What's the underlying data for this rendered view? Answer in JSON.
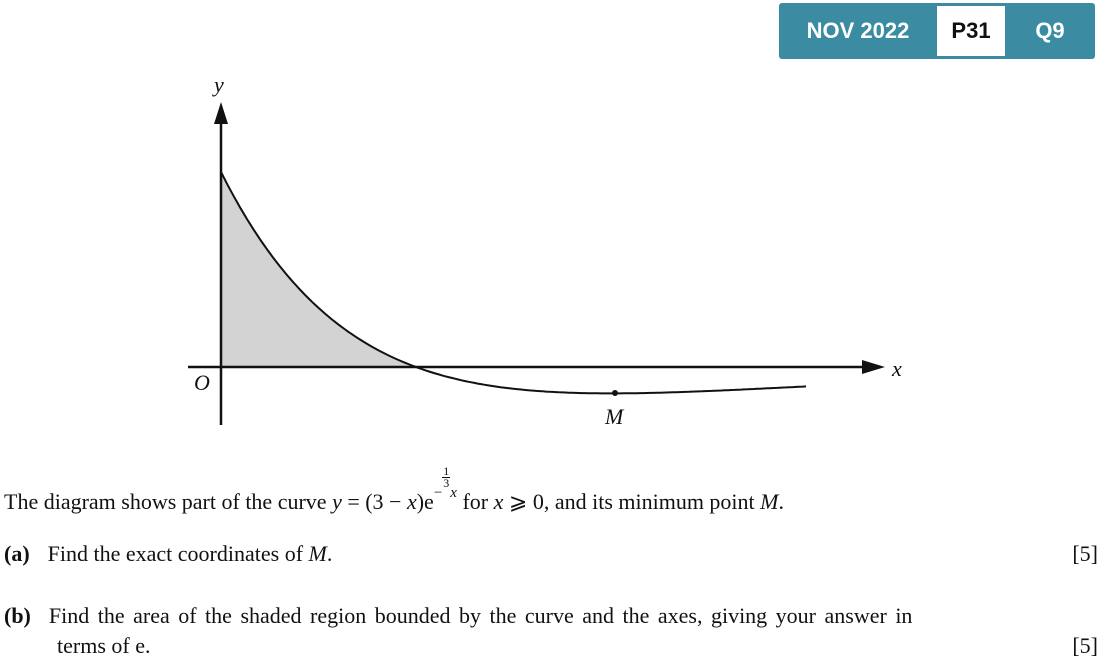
{
  "badge": {
    "session": "NOV 2022",
    "paper": "P31",
    "question": "Q9"
  },
  "diagram": {
    "y_label": "y",
    "x_label": "x",
    "origin_label": "O",
    "point_label": "M"
  },
  "intro": [
    "The diagram shows part of the curve ",
    "y",
    " = (3 − ",
    "x",
    ")e",
    "−",
    "1",
    "3",
    "x",
    " for ",
    "x",
    " ⩾ 0, and its minimum point ",
    "M",
    "."
  ],
  "parts": [
    {
      "label": "(a)",
      "text": [
        "Find the exact coordinates of ",
        "M",
        "."
      ],
      "marks": "[5]"
    },
    {
      "label": "(b)",
      "text": [
        "Find the area of the shaded region bounded by the curve and the axes, giving your answer in",
        "terms of e."
      ],
      "marks": "[5]"
    }
  ]
}
